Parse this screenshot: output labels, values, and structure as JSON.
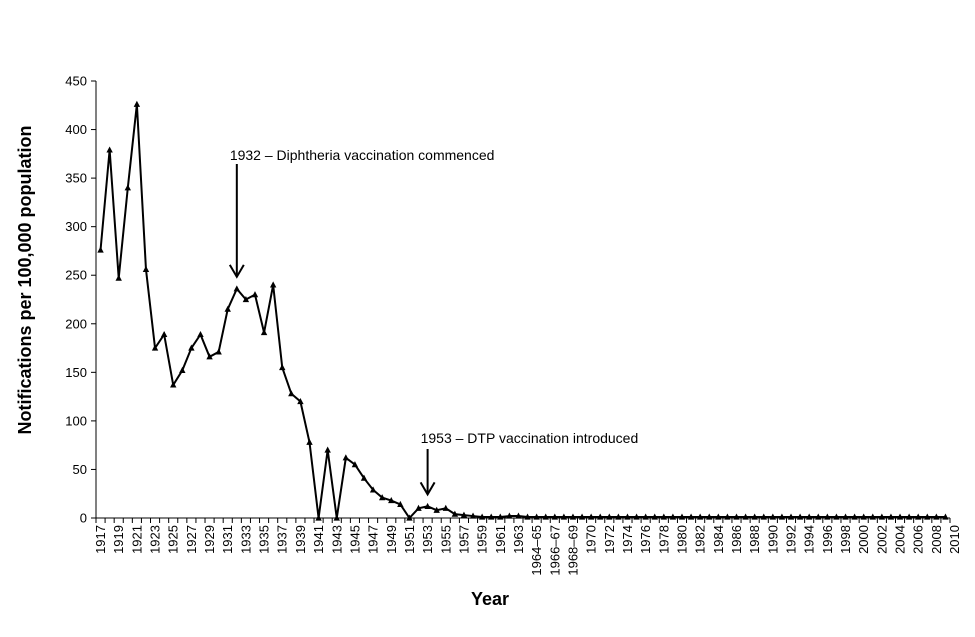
{
  "chart_data": {
    "type": "line",
    "title": "",
    "xlabel": "Year",
    "ylabel": "Notifications per 100,000 population",
    "ylim": [
      0,
      450
    ],
    "yticks": [
      0,
      50,
      100,
      150,
      200,
      250,
      300,
      350,
      400,
      450
    ],
    "grid": false,
    "legend": "none",
    "line_color": "#000000",
    "marker": "triangle",
    "series": [
      {
        "values": [
          276,
          379,
          247,
          340,
          426,
          256,
          175,
          189,
          137,
          152,
          175,
          189,
          166,
          171,
          215,
          236,
          225,
          230,
          191,
          240,
          155,
          128,
          120,
          78,
          0,
          70,
          0,
          62,
          55,
          41,
          29,
          21,
          18,
          14,
          0,
          10,
          12,
          8,
          10,
          4,
          3,
          2,
          1,
          1,
          1,
          2,
          2,
          1,
          1,
          1,
          1,
          1,
          1,
          1,
          1,
          1,
          1,
          1,
          1,
          1,
          1,
          1,
          1,
          1,
          1,
          1,
          1,
          1,
          1,
          1,
          1,
          1,
          1,
          1,
          1,
          1,
          1,
          1,
          1,
          1,
          1,
          1,
          1,
          1,
          1,
          1,
          1,
          1,
          1,
          1,
          1,
          1,
          1,
          1
        ]
      }
    ],
    "categories": [
      "1917",
      "1918",
      "1919",
      "1920",
      "1921",
      "1922",
      "1923",
      "1924",
      "1925",
      "1926",
      "1927",
      "1928",
      "1929",
      "1930",
      "1931",
      "1932",
      "1933",
      "1934",
      "1935",
      "1936",
      "1937",
      "1938",
      "1939",
      "1940",
      "1941",
      "1942",
      "1943",
      "1944",
      "1945",
      "1946",
      "1947",
      "1948",
      "1949",
      "1950",
      "1951",
      "1952",
      "1953",
      "1954",
      "1955",
      "1956",
      "1957",
      "1958",
      "1959",
      "1960",
      "1961",
      "1962",
      "1963",
      "1964-65",
      "1965-66",
      "1966-67",
      "1967-68",
      "1968-69",
      "1969-70",
      "1970",
      "1971",
      "1972",
      "1973",
      "1974",
      "1975",
      "1976",
      "1977",
      "1978",
      "1979",
      "1980",
      "1981",
      "1982",
      "1983",
      "1984",
      "1985",
      "1986",
      "1987",
      "1988",
      "1989",
      "1990",
      "1991",
      "1992",
      "1993",
      "1994",
      "1995",
      "1996",
      "1997",
      "1998",
      "1999",
      "2000",
      "2001",
      "2002",
      "2003",
      "2004",
      "2005",
      "2006",
      "2007",
      "2008",
      "2009",
      "2010"
    ],
    "tick_labels": [
      "1917",
      "1919",
      "1921",
      "1923",
      "1925",
      "1927",
      "1929",
      "1931",
      "1933",
      "1935",
      "1937",
      "1939",
      "1941",
      "1943",
      "1945",
      "1947",
      "1949",
      "1951",
      "1953",
      "1955",
      "1957",
      "1959",
      "1961",
      "1963",
      "1964–65",
      "1966–67",
      "1968–69",
      "1970",
      "1972",
      "1974",
      "1976",
      "1978",
      "1980",
      "1982",
      "1984",
      "1986",
      "1988",
      "1990",
      "1992",
      "1994",
      "1996",
      "1998",
      "2000",
      "2002",
      "2004",
      "2006",
      "2008",
      "2010"
    ],
    "annotations": [
      {
        "text": "1932 – Diphtheria vaccination commenced",
        "year": "1932",
        "value": 236
      },
      {
        "text": "1953 – DTP vaccination introduced",
        "year": "1953",
        "value": 12
      }
    ]
  }
}
